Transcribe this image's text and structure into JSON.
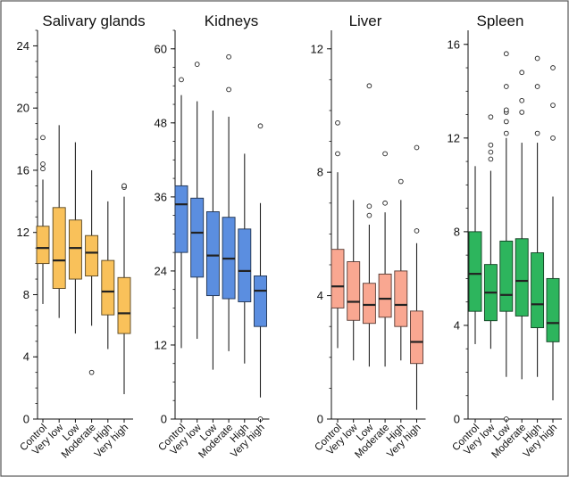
{
  "chart_data": [
    {
      "type": "box",
      "title": "Salivary glands",
      "categories": [
        "Control",
        "Very low",
        "Low",
        "Moderate",
        "High",
        "Very high"
      ],
      "ylim": [
        0,
        25
      ],
      "yticks": [
        0,
        4,
        8,
        12,
        16,
        20,
        24
      ],
      "color": "#F9C15A",
      "boxes": [
        {
          "whisker_low": 7.4,
          "q1": 10.0,
          "median": 11.0,
          "q3": 12.4,
          "whisker_high": 15.4,
          "outliers": [
            16.1,
            16.4,
            18.1
          ]
        },
        {
          "whisker_low": 6.5,
          "q1": 8.4,
          "median": 10.2,
          "q3": 13.6,
          "whisker_high": 18.9,
          "outliers": []
        },
        {
          "whisker_low": 5.5,
          "q1": 9.0,
          "median": 11.0,
          "q3": 12.8,
          "whisker_high": 17.8,
          "outliers": []
        },
        {
          "whisker_low": 6.0,
          "q1": 9.2,
          "median": 10.7,
          "q3": 11.8,
          "whisker_high": 16.0,
          "outliers": [
            3.0
          ]
        },
        {
          "whisker_low": 4.5,
          "q1": 6.7,
          "median": 8.2,
          "q3": 10.2,
          "whisker_high": 14.0,
          "outliers": []
        },
        {
          "whisker_low": 1.6,
          "q1": 5.5,
          "median": 6.8,
          "q3": 9.1,
          "whisker_high": 14.3,
          "outliers": [
            14.9,
            15.0
          ]
        }
      ]
    },
    {
      "type": "box",
      "title": "Kidneys",
      "categories": [
        "Control",
        "Very low",
        "Low",
        "Moderate",
        "High",
        "Very high"
      ],
      "ylim": [
        0,
        63
      ],
      "yticks": [
        0,
        12,
        24,
        36,
        48,
        60
      ],
      "color": "#5B8EE0",
      "boxes": [
        {
          "whisker_low": 11.5,
          "q1": 27.0,
          "median": 34.8,
          "q3": 37.8,
          "whisker_high": 52.5,
          "outliers": [
            55.0
          ]
        },
        {
          "whisker_low": 13.0,
          "q1": 23.0,
          "median": 30.2,
          "q3": 35.8,
          "whisker_high": 51.5,
          "outliers": [
            57.5
          ]
        },
        {
          "whisker_low": 8.0,
          "q1": 20.0,
          "median": 26.5,
          "q3": 33.6,
          "whisker_high": 50.0,
          "outliers": []
        },
        {
          "whisker_low": 11.0,
          "q1": 19.5,
          "median": 26.0,
          "q3": 32.7,
          "whisker_high": 49.0,
          "outliers": [
            53.4,
            58.7
          ]
        },
        {
          "whisker_low": 9.0,
          "q1": 19.0,
          "median": 24.0,
          "q3": 30.8,
          "whisker_high": 43.0,
          "outliers": []
        },
        {
          "whisker_low": 3.5,
          "q1": 15.0,
          "median": 20.8,
          "q3": 23.2,
          "whisker_high": 35.0,
          "outliers": [
            47.5,
            0.0
          ]
        }
      ]
    },
    {
      "type": "box",
      "title": "Liver",
      "categories": [
        "Control",
        "Very low",
        "Low",
        "Moderate",
        "High",
        "Very high"
      ],
      "ylim": [
        0,
        12.6
      ],
      "yticks": [
        0,
        4,
        8,
        12
      ],
      "color": "#F9A791",
      "boxes": [
        {
          "whisker_low": 2.3,
          "q1": 3.6,
          "median": 4.3,
          "q3": 5.5,
          "whisker_high": 8.0,
          "outliers": [
            8.6,
            9.6
          ]
        },
        {
          "whisker_low": 1.9,
          "q1": 3.2,
          "median": 3.8,
          "q3": 5.1,
          "whisker_high": 7.1,
          "outliers": []
        },
        {
          "whisker_low": 1.7,
          "q1": 3.1,
          "median": 3.7,
          "q3": 4.4,
          "whisker_high": 6.3,
          "outliers": [
            6.6,
            6.9,
            10.8
          ]
        },
        {
          "whisker_low": 1.7,
          "q1": 3.3,
          "median": 3.9,
          "q3": 4.7,
          "whisker_high": 6.7,
          "outliers": [
            7.0,
            8.6
          ]
        },
        {
          "whisker_low": 1.9,
          "q1": 3.0,
          "median": 3.7,
          "q3": 4.8,
          "whisker_high": 7.1,
          "outliers": [
            7.7
          ]
        },
        {
          "whisker_low": 0.3,
          "q1": 1.8,
          "median": 2.5,
          "q3": 3.5,
          "whisker_high": 5.7,
          "outliers": [
            6.1,
            8.8
          ]
        }
      ]
    },
    {
      "type": "box",
      "title": "Spleen",
      "categories": [
        "Control",
        "Very low",
        "Low",
        "Moderate",
        "High",
        "Very high"
      ],
      "ylim": [
        0,
        16.6
      ],
      "yticks": [
        0,
        4,
        8,
        12,
        16
      ],
      "color": "#2DB55D",
      "boxes": [
        {
          "whisker_low": 3.2,
          "q1": 4.6,
          "median": 6.2,
          "q3": 8.0,
          "whisker_high": 10.8,
          "outliers": []
        },
        {
          "whisker_low": 3.0,
          "q1": 4.2,
          "median": 5.4,
          "q3": 6.6,
          "whisker_high": 10.6,
          "outliers": [
            11.1,
            11.4,
            11.7,
            12.9
          ]
        },
        {
          "whisker_low": 1.8,
          "q1": 4.6,
          "median": 5.3,
          "q3": 7.6,
          "whisker_high": 12.0,
          "outliers": [
            12.2,
            12.7,
            13.1,
            13.2,
            14.2,
            15.6,
            0.0
          ]
        },
        {
          "whisker_low": 1.7,
          "q1": 4.4,
          "median": 5.9,
          "q3": 7.7,
          "whisker_high": 11.8,
          "outliers": [
            13.1,
            13.6,
            14.8
          ]
        },
        {
          "whisker_low": 1.8,
          "q1": 3.9,
          "median": 4.9,
          "q3": 7.1,
          "whisker_high": 11.8,
          "outliers": [
            12.2,
            14.2,
            15.4
          ]
        },
        {
          "whisker_low": 0.8,
          "q1": 3.3,
          "median": 4.1,
          "q3": 6.0,
          "whisker_high": 9.5,
          "outliers": [
            12.0,
            13.4,
            15.0
          ]
        }
      ]
    }
  ]
}
